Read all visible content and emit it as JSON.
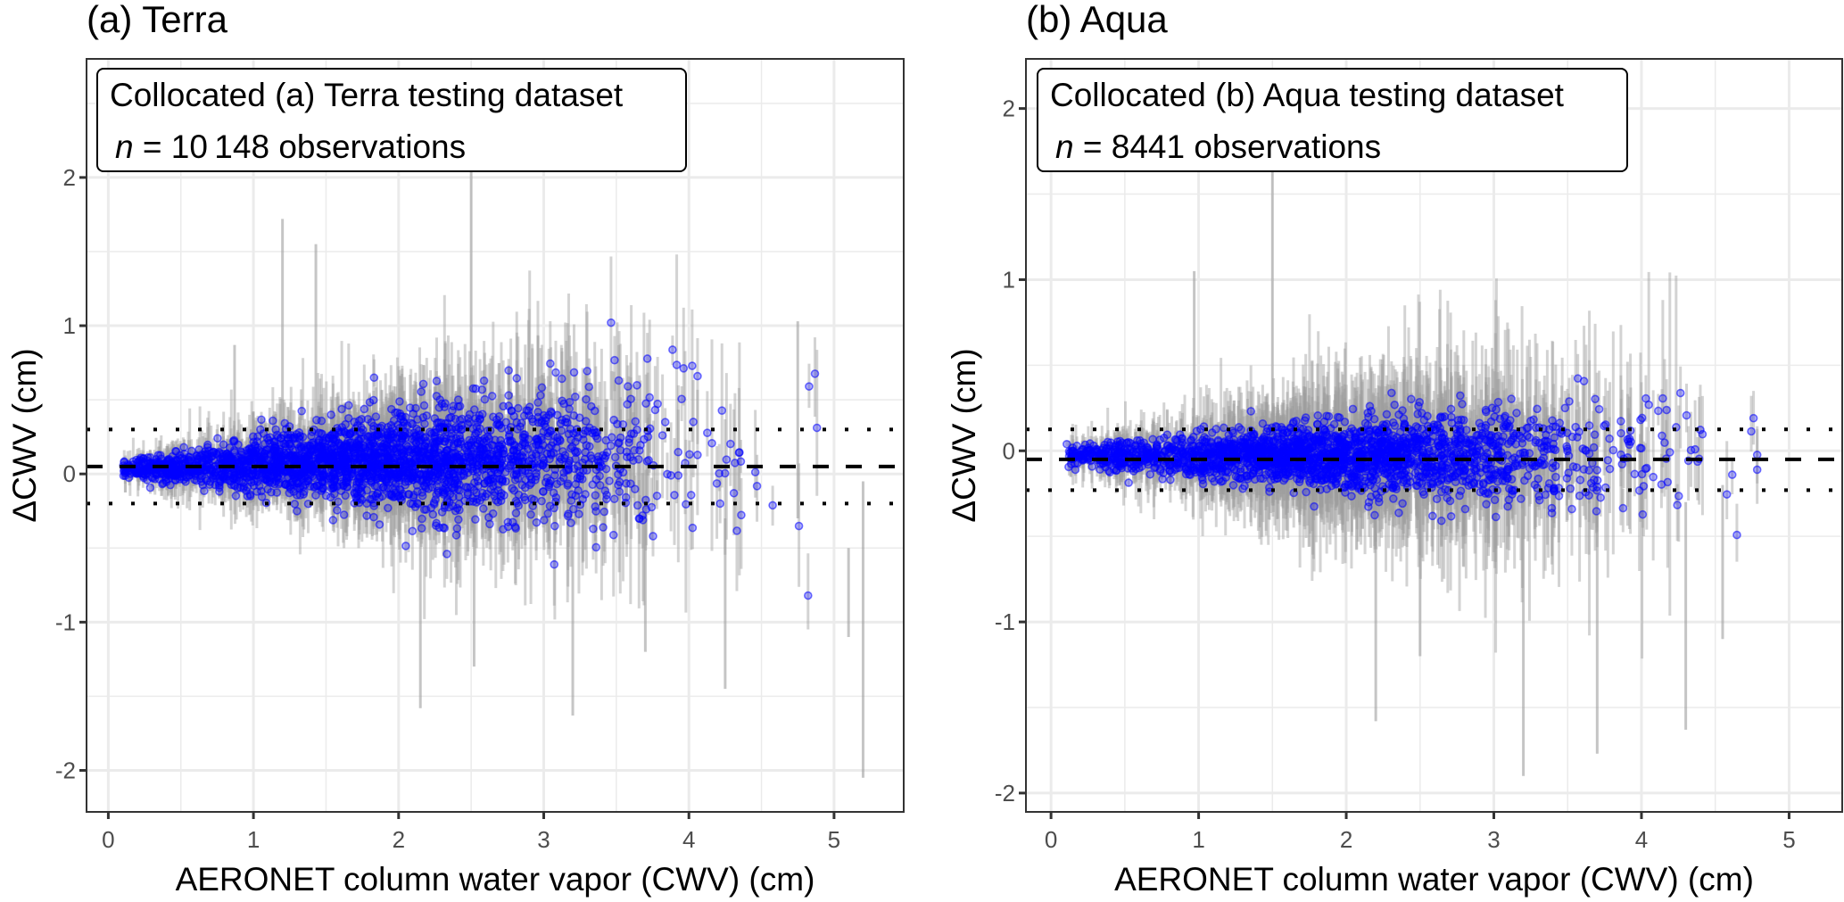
{
  "chart_data": [
    {
      "type": "scatter",
      "panel_title": "(a) Terra",
      "xlabel": "AERONET column water vapor (CWV) (cm)",
      "ylabel": "ΔCWV (cm)",
      "xlim": [
        -0.15,
        5.48
      ],
      "ylim": [
        -2.28,
        2.8
      ],
      "xticks": [
        "0",
        "1",
        "2",
        "3",
        "4",
        "5"
      ],
      "yticks": [
        "-2",
        "-1",
        "0",
        "1",
        "2"
      ],
      "grid": true,
      "legend": {
        "placement": "top-left",
        "line1": "Collocated (a) Terra testing dataset",
        "n_symbol": "n",
        "line2": " = 10 148 observations"
      },
      "n_observations": 10148,
      "reference_lines": [
        {
          "style": "dashed",
          "y": 0.05,
          "meaning": "mean bias"
        },
        {
          "style": "dotted",
          "y": 0.3
        },
        {
          "style": "dotted",
          "y": -0.2
        }
      ],
      "point_color": "#0000ff",
      "errorbar_color": "#9e9e9e",
      "cloud_model": {
        "x_center": 1.8,
        "x_sd": 0.95,
        "x_min": 0.1,
        "x_max": 5.0,
        "bias_intercept": 0.03,
        "bias_slope": 0.03,
        "sd_intercept": 0.02,
        "sd_slope": 0.07,
        "rendered_points": 2600
      },
      "notable_errorbars": [
        {
          "x": 0.87,
          "ymin": -0.1,
          "ymax": 0.87
        },
        {
          "x": 1.2,
          "ymin": 0.0,
          "ymax": 1.72
        },
        {
          "x": 1.43,
          "ymin": 0.0,
          "ymax": 1.55
        },
        {
          "x": 2.15,
          "ymin": -1.58,
          "ymax": -0.3
        },
        {
          "x": 2.5,
          "ymin": 0.1,
          "ymax": 2.05
        },
        {
          "x": 2.52,
          "ymin": -1.3,
          "ymax": -0.2
        },
        {
          "x": 3.2,
          "ymin": -1.63,
          "ymax": -0.3
        },
        {
          "x": 3.7,
          "ymin": -1.2,
          "ymax": -0.2
        },
        {
          "x": 4.25,
          "ymin": -1.45,
          "ymax": -0.3
        },
        {
          "x": 4.75,
          "ymin": -0.3,
          "ymax": 1.03
        },
        {
          "x": 5.1,
          "ymin": -1.1,
          "ymax": -0.5
        },
        {
          "x": 5.2,
          "ymin": -2.05,
          "ymax": -0.05
        }
      ]
    },
    {
      "type": "scatter",
      "panel_title": "(b) Aqua",
      "xlabel": "AERONET column water vapor (CWV) (cm)",
      "ylabel": "ΔCWV (cm)",
      "xlim": [
        -0.17,
        5.36
      ],
      "ylim": [
        -2.11,
        2.29
      ],
      "xticks": [
        "0",
        "1",
        "2",
        "3",
        "4",
        "5"
      ],
      "yticks": [
        "-2",
        "-1",
        "0",
        "1",
        "2"
      ],
      "grid": true,
      "legend": {
        "placement": "top-left",
        "line1": "Collocated (b) Aqua testing dataset",
        "n_symbol": "n",
        "line2": " = 8441 observations"
      },
      "n_observations": 8441,
      "reference_lines": [
        {
          "style": "dashed",
          "y": -0.05,
          "meaning": "mean bias"
        },
        {
          "style": "dotted",
          "y": 0.125
        },
        {
          "style": "dotted",
          "y": -0.23
        }
      ],
      "point_color": "#0000ff",
      "errorbar_color": "#9e9e9e",
      "cloud_model": {
        "x_center": 1.9,
        "x_sd": 0.95,
        "x_min": 0.1,
        "x_max": 4.85,
        "bias_intercept": -0.03,
        "bias_slope": 0.0,
        "sd_intercept": 0.03,
        "sd_slope": 0.035,
        "rendered_points": 2300
      },
      "notable_errorbars": [
        {
          "x": 0.97,
          "ymin": 0.0,
          "ymax": 1.05
        },
        {
          "x": 1.5,
          "ymin": 0.05,
          "ymax": 1.65
        },
        {
          "x": 2.2,
          "ymin": -1.58,
          "ymax": -0.2
        },
        {
          "x": 2.5,
          "ymin": -1.2,
          "ymax": -0.2
        },
        {
          "x": 3.2,
          "ymin": -1.9,
          "ymax": -0.1
        },
        {
          "x": 3.7,
          "ymin": -1.77,
          "ymax": -0.2
        },
        {
          "x": 4.3,
          "ymin": -1.63,
          "ymax": -0.3
        },
        {
          "x": 4.55,
          "ymin": -1.1,
          "ymax": -0.2
        }
      ]
    }
  ]
}
